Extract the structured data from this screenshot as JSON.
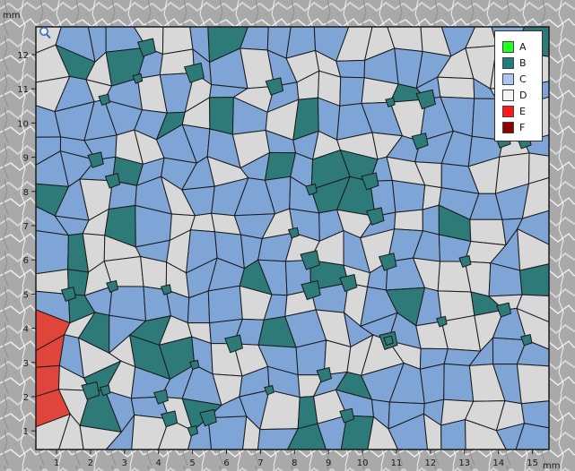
{
  "axis": {
    "unit": "mm",
    "x_ticks": [
      "1",
      "2",
      "3",
      "4",
      "5",
      "6",
      "7",
      "8",
      "9",
      "10",
      "11",
      "12",
      "13",
      "14",
      "15"
    ],
    "x_end_label": "mm",
    "y_ticks": [
      "12",
      "11",
      "10",
      "9",
      "8",
      "7",
      "6",
      "5",
      "4",
      "3",
      "2",
      "1"
    ]
  },
  "legend": {
    "items": [
      {
        "label": "A",
        "color": "#22ff22"
      },
      {
        "label": "B",
        "color": "#1d7f7f"
      },
      {
        "label": "C",
        "color": "#a9c8ef"
      },
      {
        "label": "D",
        "color": "#f5f5f5"
      },
      {
        "label": "E",
        "color": "#ff1a1a"
      },
      {
        "label": "F",
        "color": "#8b0000"
      }
    ]
  },
  "map_colors": {
    "blue": "#7ea5d6",
    "teal": "#2d7a79",
    "gray": "#d8d8d8",
    "red": "#e0453c",
    "border": "#1a1a1a"
  },
  "icons": {
    "zoom": "magnifier-icon"
  }
}
